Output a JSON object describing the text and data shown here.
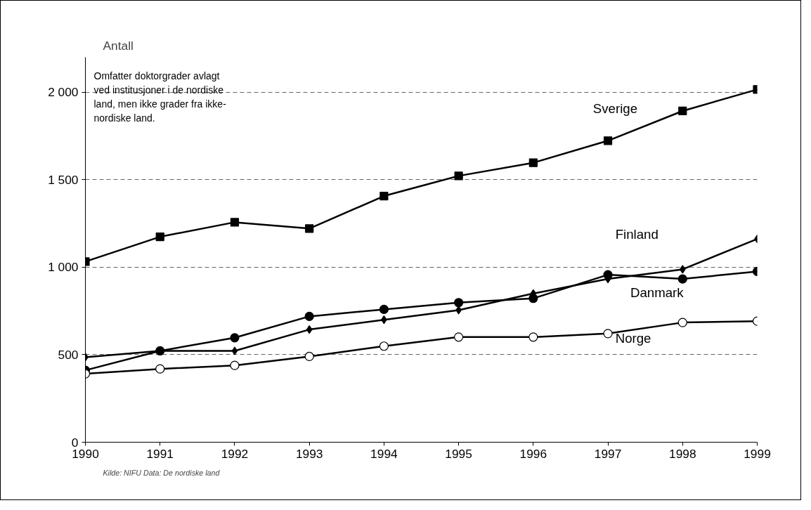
{
  "chart_data": {
    "type": "line",
    "ylabel": "Antall",
    "x": [
      1990,
      1991,
      1992,
      1993,
      1994,
      1995,
      1996,
      1997,
      1998,
      1999
    ],
    "xlim": [
      1990,
      1999
    ],
    "xticks": [
      1990,
      1991,
      1992,
      1993,
      1994,
      1995,
      1996,
      1997,
      1998,
      1999
    ],
    "ylim": [
      0,
      2200
    ],
    "yticks": [
      0,
      500,
      {
        "value": 1000,
        "label": "1 000"
      },
      {
        "value": 1500,
        "label": "1 500"
      },
      {
        "value": 2000,
        "label": "2 000"
      }
    ],
    "grid": "y",
    "legend": false,
    "line_style": "solid",
    "series": [
      {
        "name": "Sverige",
        "color": "#000000",
        "marker": "square",
        "values": [
          1032,
          1174,
          1257,
          1221,
          1407,
          1522,
          1597,
          1723,
          1893,
          2016
        ]
      },
      {
        "name": "Finland",
        "color": "#000000",
        "marker": "diamond",
        "values": [
          486,
          522,
          522,
          644,
          700,
          755,
          850,
          933,
          988,
          1162
        ]
      },
      {
        "name": "Danmark",
        "color": "#000000",
        "marker": "circle",
        "values": [
          411,
          522,
          597,
          719,
          759,
          798,
          822,
          957,
          933,
          976
        ]
      },
      {
        "name": "Norge",
        "color": "#000000",
        "marker": "circle",
        "values": [
          391,
          419,
          439,
          490,
          549,
          601,
          601,
          621,
          684,
          692
        ]
      }
    ],
    "annotations": [
      "Omfatter doktorgrader avlagt\nved institusjoner i de nordiske\nland, men ikke grader fra ikke-\nnordiske land.",
      "Kilde: NIFU    Data: De nordiske land"
    ]
  }
}
